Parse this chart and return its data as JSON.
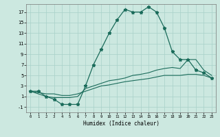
{
  "xlabel": "Humidex (Indice chaleur)",
  "bg_color": "#cce8e0",
  "grid_color": "#a8d0c8",
  "line_color": "#1a6b5a",
  "xlim": [
    -0.5,
    23.5
  ],
  "ylim": [
    -2.0,
    18.5
  ],
  "xticks": [
    0,
    1,
    2,
    3,
    4,
    5,
    6,
    7,
    8,
    9,
    10,
    11,
    12,
    13,
    14,
    15,
    16,
    17,
    18,
    19,
    20,
    21,
    22,
    23
  ],
  "yticks": [
    -1,
    1,
    3,
    5,
    7,
    9,
    11,
    13,
    15,
    17
  ],
  "main_x": [
    0,
    1,
    2,
    3,
    4,
    5,
    6,
    7,
    8,
    9,
    10,
    11,
    12,
    13,
    14,
    15,
    16,
    17,
    18,
    19,
    20,
    21,
    22,
    23
  ],
  "main_y": [
    2,
    2,
    1,
    0.5,
    -0.5,
    -0.5,
    -0.5,
    3,
    7,
    10,
    13,
    15.5,
    17.5,
    17,
    17,
    18,
    17,
    14,
    9.5,
    8,
    8,
    6,
    5.5,
    4.5
  ],
  "line2_x": [
    0,
    2,
    3,
    4,
    5,
    6,
    7,
    8,
    9,
    10,
    11,
    12,
    13,
    14,
    15,
    16,
    17,
    18,
    19,
    20,
    21,
    22,
    23
  ],
  "line2_y": [
    2,
    1,
    0.8,
    0.8,
    0.8,
    1,
    2.5,
    3,
    3.5,
    4,
    4.2,
    4.5,
    5,
    5.2,
    5.5,
    6,
    6.3,
    6.5,
    6.3,
    8,
    8,
    6,
    5
  ],
  "line3_x": [
    0,
    2,
    3,
    4,
    5,
    6,
    7,
    8,
    9,
    10,
    11,
    12,
    13,
    14,
    15,
    16,
    17,
    18,
    19,
    20,
    21,
    22,
    23
  ],
  "line3_y": [
    2,
    1.5,
    1.5,
    1.2,
    1.2,
    1.5,
    2,
    2.5,
    3,
    3.2,
    3.5,
    3.8,
    4,
    4.2,
    4.4,
    4.7,
    5,
    5,
    5,
    5.2,
    5.2,
    5,
    4.5
  ]
}
